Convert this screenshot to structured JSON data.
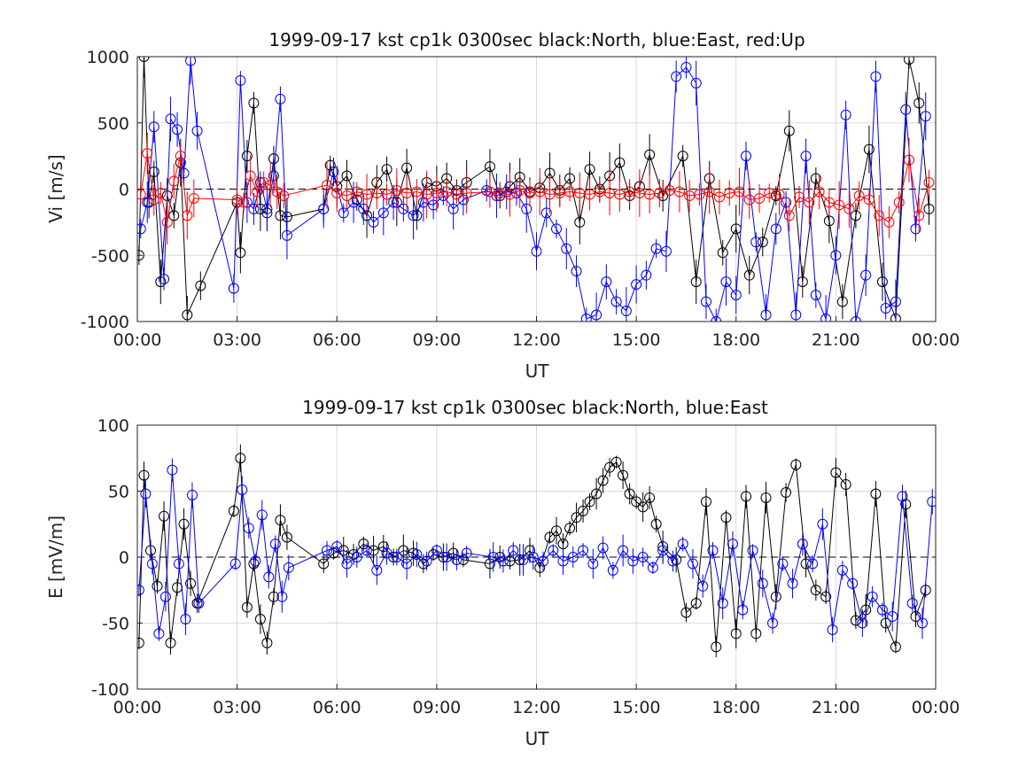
{
  "colors": {
    "north": "#000000",
    "east": "#0000ff",
    "up": "#ff0000",
    "grid": "#d9d9d9",
    "axis": "#222222"
  },
  "chart_data": [
    {
      "type": "line",
      "title": "1999-09-17 kst cp1k 0300sec black:North, blue:East, red:Up",
      "xlabel": "UT",
      "ylabel": "Vi [m/s]",
      "xlim": [
        0,
        24
      ],
      "ylim": [
        -1000,
        1000
      ],
      "grid": true,
      "xticks": [
        "00:00",
        "03:00",
        "06:00",
        "09:00",
        "12:00",
        "15:00",
        "18:00",
        "21:00",
        "00:00"
      ],
      "yticks": [
        "1000",
        "500",
        "0",
        "-500",
        "-1000"
      ],
      "series": [
        {
          "name": "North",
          "color": "#000000",
          "x": [
            0.05,
            0.2,
            0.35,
            0.5,
            0.7,
            0.9,
            1.1,
            1.3,
            1.5,
            1.9,
            3.0,
            3.1,
            3.3,
            3.5,
            3.7,
            3.9,
            4.1,
            4.3,
            4.5,
            5.6,
            5.8,
            6.0,
            6.3,
            6.6,
            6.9,
            7.2,
            7.5,
            7.8,
            8.1,
            8.4,
            8.7,
            9.0,
            9.3,
            9.6,
            9.9,
            10.6,
            10.9,
            11.2,
            11.5,
            11.8,
            12.1,
            12.4,
            12.7,
            13.0,
            13.3,
            13.6,
            13.9,
            14.2,
            14.5,
            14.8,
            15.1,
            15.4,
            15.8,
            16.4,
            16.8,
            17.2,
            17.6,
            18.0,
            18.4,
            18.8,
            19.2,
            19.6,
            20.0,
            20.4,
            20.8,
            21.2,
            21.6,
            22.0,
            22.4,
            22.8,
            23.2,
            23.5,
            23.8
          ],
          "y": [
            -500,
            1000,
            -100,
            130,
            -700,
            -50,
            -200,
            200,
            -950,
            -730,
            -100,
            -480,
            250,
            650,
            -150,
            -180,
            230,
            -200,
            -210,
            -150,
            180,
            20,
            100,
            -80,
            -200,
            50,
            150,
            -100,
            160,
            -200,
            50,
            20,
            80,
            -10,
            50,
            170,
            -50,
            20,
            90,
            -20,
            10,
            120,
            -10,
            80,
            -250,
            150,
            0,
            100,
            200,
            -50,
            20,
            260,
            -50,
            250,
            -700,
            80,
            -480,
            -300,
            -650,
            -400,
            -50,
            440,
            -700,
            80,
            -240,
            -850,
            -200,
            300,
            -700,
            -980,
            980,
            650,
            -150
          ]
        },
        {
          "name": "East",
          "color": "#0000ff",
          "x": [
            0.1,
            0.3,
            0.5,
            0.8,
            1.0,
            1.2,
            1.4,
            1.6,
            1.8,
            2.9,
            3.1,
            3.3,
            3.5,
            3.7,
            3.9,
            4.1,
            4.3,
            4.5,
            5.6,
            5.9,
            6.2,
            6.5,
            6.8,
            7.1,
            7.4,
            7.7,
            8.0,
            8.3,
            8.6,
            8.9,
            9.2,
            9.5,
            9.8,
            10.5,
            10.8,
            11.1,
            11.4,
            11.7,
            12.0,
            12.3,
            12.6,
            12.9,
            13.2,
            13.5,
            13.8,
            14.1,
            14.4,
            14.7,
            15.0,
            15.3,
            15.6,
            15.9,
            16.2,
            16.5,
            16.8,
            17.1,
            17.4,
            17.7,
            18.0,
            18.3,
            18.6,
            18.9,
            19.2,
            19.5,
            19.8,
            20.1,
            20.4,
            20.7,
            21.0,
            21.3,
            21.6,
            21.9,
            22.2,
            22.5,
            22.8,
            23.1,
            23.4,
            23.7
          ],
          "y": [
            -300,
            -100,
            470,
            -680,
            530,
            450,
            120,
            970,
            440,
            -750,
            820,
            -100,
            -150,
            50,
            -150,
            100,
            680,
            -350,
            -150,
            130,
            -180,
            -100,
            -150,
            -250,
            -180,
            -100,
            -150,
            -200,
            -100,
            -120,
            -50,
            -150,
            -80,
            -10,
            -50,
            -20,
            -30,
            -150,
            -470,
            -180,
            -300,
            -450,
            -620,
            -980,
            -950,
            -700,
            -850,
            -920,
            -720,
            -650,
            -450,
            -470,
            850,
            920,
            800,
            -850,
            -1000,
            -700,
            -800,
            250,
            -400,
            -950,
            -300,
            -100,
            -950,
            250,
            -800,
            -980,
            -500,
            560,
            -1000,
            -650,
            850,
            -900,
            -850,
            600,
            -300,
            550
          ]
        },
        {
          "name": "Up",
          "color": "#ff0000",
          "x": [
            0.1,
            0.3,
            0.5,
            0.7,
            0.9,
            1.1,
            1.3,
            1.5,
            1.7,
            3.0,
            3.2,
            3.4,
            3.6,
            3.8,
            4.0,
            4.2,
            4.4,
            5.7,
            6.0,
            6.3,
            6.6,
            6.9,
            7.2,
            7.5,
            7.8,
            8.1,
            8.4,
            8.7,
            9.0,
            9.3,
            9.6,
            9.9,
            10.6,
            10.9,
            11.2,
            11.5,
            11.8,
            12.1,
            12.4,
            12.7,
            13.0,
            13.3,
            13.6,
            13.9,
            14.2,
            14.5,
            14.8,
            15.1,
            15.4,
            15.7,
            16.0,
            16.3,
            16.6,
            16.9,
            17.2,
            17.5,
            17.8,
            18.1,
            18.4,
            18.7,
            19.0,
            19.3,
            19.6,
            19.9,
            20.2,
            20.5,
            20.8,
            21.1,
            21.4,
            21.7,
            22.0,
            22.3,
            22.6,
            22.9,
            23.2,
            23.5,
            23.8
          ],
          "y": [
            -40,
            270,
            -80,
            -30,
            -250,
            60,
            250,
            -200,
            -70,
            -80,
            -100,
            100,
            -20,
            50,
            30,
            -20,
            -50,
            30,
            -30,
            -50,
            -20,
            -40,
            -30,
            -40,
            -10,
            -30,
            -20,
            -40,
            -30,
            -20,
            -40,
            -30,
            -20,
            -30,
            -40,
            -10,
            -30,
            -20,
            -40,
            -30,
            -20,
            -30,
            -40,
            -20,
            -30,
            -40,
            -20,
            -30,
            -40,
            -30,
            -10,
            -20,
            -50,
            -40,
            -20,
            -60,
            -30,
            -20,
            -80,
            -70,
            -30,
            -40,
            -200,
            -60,
            -100,
            -20,
            -100,
            -120,
            -150,
            -50,
            -80,
            -200,
            -250,
            -100,
            220,
            -200,
            50
          ]
        }
      ]
    },
    {
      "type": "line",
      "title": "1999-09-17 kst cp1k 0300sec black:North, blue:East",
      "xlabel": "UT",
      "ylabel": "E [mV/m]",
      "xlim": [
        0,
        24
      ],
      "ylim": [
        -100,
        100
      ],
      "grid": true,
      "xticks": [
        "00:00",
        "03:00",
        "06:00",
        "09:00",
        "12:00",
        "15:00",
        "18:00",
        "21:00",
        "00:00"
      ],
      "yticks": [
        "100",
        "50",
        "0",
        "-50",
        "-100"
      ],
      "series": [
        {
          "name": "North",
          "color": "#000000",
          "x": [
            0.05,
            0.2,
            0.4,
            0.6,
            0.8,
            1.0,
            1.2,
            1.4,
            1.6,
            1.8,
            2.9,
            3.1,
            3.3,
            3.5,
            3.7,
            3.9,
            4.1,
            4.3,
            4.5,
            5.6,
            5.9,
            6.2,
            6.5,
            6.8,
            7.1,
            7.4,
            7.7,
            8.0,
            8.3,
            8.6,
            8.9,
            9.2,
            9.5,
            9.8,
            10.6,
            10.9,
            11.2,
            11.5,
            11.8,
            12.1,
            12.4,
            12.6,
            12.8,
            13.0,
            13.2,
            13.4,
            13.6,
            13.8,
            14.0,
            14.2,
            14.4,
            14.6,
            14.8,
            15.0,
            15.2,
            15.4,
            15.6,
            15.8,
            16.2,
            16.5,
            16.8,
            17.1,
            17.4,
            17.7,
            18.0,
            18.3,
            18.6,
            18.9,
            19.2,
            19.5,
            19.8,
            20.1,
            20.4,
            20.7,
            21.0,
            21.3,
            21.6,
            21.9,
            22.2,
            22.5,
            22.8,
            23.1,
            23.4,
            23.7
          ],
          "y": [
            -65,
            62,
            5,
            -22,
            31,
            -65,
            -23,
            25,
            -20,
            -35,
            35,
            75,
            -38,
            -5,
            -47,
            -65,
            -30,
            28,
            15,
            -5,
            3,
            5,
            2,
            10,
            5,
            8,
            0,
            5,
            3,
            -5,
            2,
            0,
            3,
            -2,
            -5,
            0,
            -3,
            -2,
            5,
            -8,
            15,
            20,
            10,
            22,
            30,
            35,
            42,
            48,
            58,
            68,
            72,
            62,
            48,
            42,
            38,
            45,
            25,
            8,
            -2,
            -42,
            -35,
            42,
            -68,
            30,
            -58,
            46,
            -58,
            45,
            -30,
            49,
            70,
            -5,
            -25,
            -30,
            64,
            55,
            -48,
            -40,
            48,
            -50,
            -68,
            40,
            -45,
            -25
          ]
        },
        {
          "name": "East",
          "color": "#0000ff",
          "x": [
            0.05,
            0.25,
            0.45,
            0.65,
            0.85,
            1.05,
            1.25,
            1.45,
            1.65,
            1.85,
            2.95,
            3.15,
            3.35,
            3.55,
            3.75,
            3.95,
            4.15,
            4.35,
            4.55,
            5.7,
            6.0,
            6.3,
            6.6,
            6.9,
            7.2,
            7.5,
            7.8,
            8.1,
            8.4,
            8.7,
            9.0,
            9.3,
            9.6,
            9.9,
            10.7,
            11.0,
            11.3,
            11.6,
            11.9,
            12.2,
            12.5,
            12.8,
            13.1,
            13.4,
            13.7,
            14.0,
            14.3,
            14.6,
            14.9,
            15.2,
            15.5,
            15.8,
            16.1,
            16.4,
            16.7,
            17.0,
            17.3,
            17.6,
            17.9,
            18.2,
            18.5,
            18.8,
            19.1,
            19.4,
            19.7,
            20.0,
            20.3,
            20.6,
            20.9,
            21.2,
            21.5,
            21.8,
            22.1,
            22.4,
            22.7,
            23.0,
            23.3,
            23.6,
            23.9
          ],
          "y": [
            -25,
            48,
            -5,
            -58,
            -30,
            66,
            -5,
            -47,
            47,
            -35,
            -5,
            51,
            22,
            -3,
            32,
            -15,
            10,
            -30,
            -8,
            5,
            8,
            -5,
            0,
            5,
            -10,
            3,
            0,
            -5,
            2,
            -3,
            5,
            0,
            -2,
            3,
            0,
            -3,
            5,
            -2,
            0,
            -3,
            5,
            -3,
            0,
            5,
            -5,
            7,
            -10,
            5,
            -3,
            0,
            -8,
            5,
            -3,
            10,
            -5,
            -22,
            5,
            -35,
            10,
            -40,
            5,
            -20,
            -50,
            -5,
            -20,
            10,
            -5,
            25,
            -55,
            -10,
            -20,
            -50,
            -30,
            -40,
            -45,
            46,
            -35,
            -50,
            42
          ]
        }
      ]
    }
  ]
}
